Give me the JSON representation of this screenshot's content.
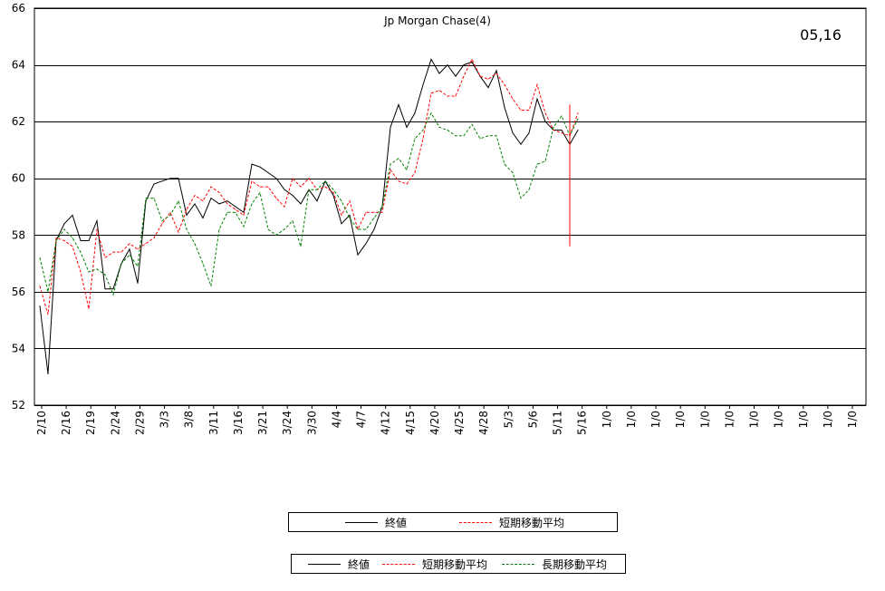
{
  "chart_data": {
    "type": "line",
    "title": "Jp Morgan Chase(4)",
    "date_label": "05,16",
    "ylim": [
      52,
      66
    ],
    "yticks": [
      52,
      54,
      56,
      58,
      60,
      62,
      64,
      66
    ],
    "grid": true,
    "xtick_labels": [
      "2/10",
      "2/16",
      "2/19",
      "2/24",
      "2/29",
      "3/3",
      "3/8",
      "3/11",
      "3/16",
      "3/21",
      "3/24",
      "3/30",
      "4/4",
      "4/7",
      "4/12",
      "4/15",
      "4/20",
      "4/25",
      "4/28",
      "5/3",
      "5/6",
      "5/11",
      "5/16",
      "1/0",
      "1/0",
      "1/0",
      "1/0",
      "1/0",
      "1/0",
      "1/0",
      "1/0",
      "1/0",
      "1/0",
      "1/0"
    ],
    "series": [
      {
        "name": "終値",
        "color": "#000000",
        "style": "solid",
        "values": [
          55.5,
          53.1,
          57.8,
          58.4,
          58.7,
          57.8,
          57.8,
          58.5,
          56.1,
          56.1,
          57.0,
          57.5,
          56.3,
          59.2,
          59.8,
          59.9,
          60.0,
          60.0,
          58.7,
          59.1,
          58.6,
          59.3,
          59.1,
          59.2,
          59.0,
          58.8,
          60.5,
          60.4,
          60.2,
          60.0,
          59.6,
          59.4,
          59.1,
          59.6,
          59.2,
          59.9,
          59.4,
          58.4,
          58.7,
          57.3,
          57.7,
          58.2,
          59.0,
          61.8,
          62.6,
          61.8,
          62.3,
          63.3,
          64.2,
          63.7,
          64.0,
          63.6,
          64.0,
          64.1,
          63.6,
          63.2,
          63.8,
          62.5,
          61.6,
          61.2,
          61.6,
          62.8,
          62.0,
          61.7,
          61.7,
          61.2,
          61.7
        ]
      },
      {
        "name": "短期移動平均",
        "color": "#ff0000",
        "style": "dashed",
        "values": [
          56.2,
          55.2,
          57.9,
          57.8,
          57.6,
          56.7,
          55.4,
          58.2,
          57.2,
          57.4,
          57.4,
          57.7,
          57.5,
          57.7,
          57.9,
          58.4,
          58.8,
          58.1,
          58.9,
          59.4,
          59.2,
          59.7,
          59.5,
          59.1,
          58.9,
          58.7,
          59.9,
          59.7,
          59.7,
          59.3,
          59.0,
          60.0,
          59.7,
          60.0,
          59.6,
          59.7,
          59.5,
          58.7,
          59.2,
          58.2,
          58.8,
          58.8,
          58.8,
          60.3,
          59.9,
          59.8,
          60.2,
          61.4,
          63.0,
          63.1,
          62.9,
          62.9,
          63.6,
          64.2,
          63.6,
          63.5,
          63.7,
          63.3,
          62.8,
          62.4,
          62.4,
          63.3,
          62.3,
          61.7,
          61.6,
          61.5,
          62.3
        ]
      },
      {
        "name": "長期移動平均",
        "color": "#008000",
        "style": "dashed",
        "values": [
          57.2,
          56.0,
          57.8,
          58.2,
          57.9,
          57.4,
          56.7,
          56.8,
          56.6,
          55.9,
          57.0,
          57.3,
          56.9,
          59.3,
          59.3,
          58.5,
          58.7,
          59.2,
          58.2,
          57.7,
          57.0,
          56.2,
          58.2,
          58.8,
          58.8,
          58.3,
          59.1,
          59.5,
          58.2,
          58.0,
          58.2,
          58.5,
          57.6,
          59.6,
          59.6,
          59.9,
          59.6,
          59.2,
          58.6,
          58.2,
          58.2,
          58.6,
          59.0,
          60.5,
          60.7,
          60.3,
          61.4,
          61.7,
          62.3,
          61.8,
          61.7,
          61.5,
          61.5,
          61.9,
          61.4,
          61.5,
          61.5,
          60.5,
          60.2,
          59.3,
          59.6,
          60.5,
          60.6,
          61.8,
          62.2,
          61.5,
          62.1
        ]
      }
    ],
    "marker": {
      "from": 57.6,
      "to": 62.6,
      "color": "#ff0000"
    }
  },
  "legends": [
    {
      "items": [
        {
          "label": "終値",
          "color": "#000000",
          "style": "solid"
        },
        {
          "label": "短期移動平均",
          "color": "#ff0000",
          "style": "dashed"
        }
      ]
    },
    {
      "items": [
        {
          "label": "終値",
          "color": "#000000",
          "style": "solid"
        },
        {
          "label": "短期移動平均",
          "color": "#ff0000",
          "style": "dashed"
        },
        {
          "label": "長期移動平均",
          "color": "#008000",
          "style": "dashed"
        }
      ]
    }
  ]
}
